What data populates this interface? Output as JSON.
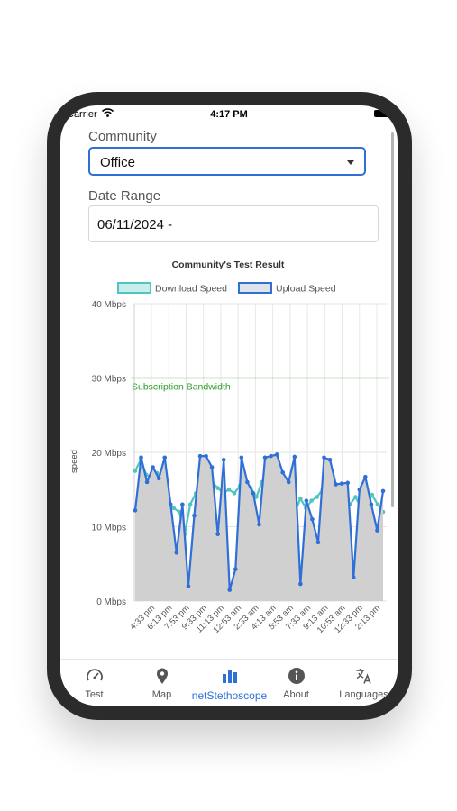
{
  "status_bar": {
    "carrier": "Carrier",
    "time": "4:17 PM"
  },
  "filters": {
    "community_label": "Community",
    "community_value": "Office",
    "date_range_label": "Date Range",
    "date_range_value": "06/11/2024 -"
  },
  "chart_data": {
    "type": "line",
    "title": "Community's Test Result",
    "ylabel": "speed",
    "xlabel": "",
    "ylim": [
      0,
      40
    ],
    "yticks": [
      "0 Mbps",
      "10 Mbps",
      "20 Mbps",
      "30 Mbps",
      "40 Mbps"
    ],
    "x_tick_labels": [
      "4:33 pm",
      "6:13 pm",
      "7:53 pm",
      "9:33 pm",
      "11:13 pm",
      "12:53 am",
      "2:33 am",
      "4:13 am",
      "5:53 am",
      "7:33 am",
      "9:13 am",
      "10:53 am",
      "12:33 pm",
      "2:13 pm"
    ],
    "grid": true,
    "legend_position": "top",
    "reference_line": {
      "label": "Subscription Bandwidth",
      "value": 30,
      "color": "#2e9b2e"
    },
    "series": [
      {
        "name": "Download Speed",
        "color": "#4fc4c0",
        "values": [
          17.5,
          19.0,
          17.0,
          16.5,
          17.2,
          14.0,
          12.8,
          12.5,
          12.0,
          9.0,
          13.0,
          14.5,
          15.5,
          16.5,
          16.0,
          15.2,
          14.5,
          15.0,
          14.5,
          15.5,
          14.5,
          15.2,
          14.0,
          16.0,
          16.3,
          16.5,
          15.0,
          15.3,
          14.5,
          12.0,
          13.8,
          12.5,
          13.5,
          14.0,
          15.0,
          14.3,
          11.5,
          12.5,
          12.0,
          13.0,
          14.0,
          12.5,
          12.8,
          14.3,
          13.0,
          12.0
        ]
      },
      {
        "name": "Upload Speed",
        "color": "#2f6fd6",
        "values": [
          12.2,
          19.3,
          16.0,
          18.0,
          16.5,
          19.3,
          13.0,
          6.5,
          13.0,
          2.0,
          11.5,
          19.5,
          19.5,
          18.0,
          9.0,
          19.0,
          1.5,
          4.3,
          19.3,
          16.0,
          14.5,
          10.3,
          19.3,
          19.5,
          19.7,
          17.3,
          16.0,
          19.4,
          2.3,
          13.5,
          11.0,
          7.9,
          19.3,
          19.0,
          15.7,
          15.8,
          15.9,
          3.2,
          15.0,
          16.7,
          13.0,
          9.5,
          14.8
        ]
      }
    ]
  },
  "tabs": [
    {
      "label": "Test",
      "icon": "speedometer-icon"
    },
    {
      "label": "Map",
      "icon": "map-pin-icon"
    },
    {
      "label": "netStethoscope",
      "icon": "bar-chart-icon",
      "active": true,
      "color": "#2f6fd6"
    },
    {
      "label": "About",
      "icon": "info-icon"
    },
    {
      "label": "Languages",
      "icon": "translate-icon"
    }
  ]
}
